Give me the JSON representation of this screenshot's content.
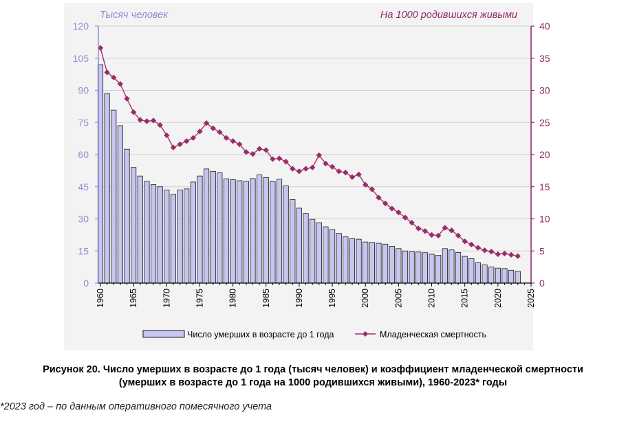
{
  "chart_data": {
    "type": "bar+line",
    "left_axis_title": "Тысяч человек",
    "right_axis_title": "На 1000 родившихся живыми",
    "left_ylim": [
      0,
      120
    ],
    "left_ticks": [
      "0",
      "15",
      "30",
      "45",
      "60",
      "75",
      "90",
      "105",
      "120"
    ],
    "right_ylim": [
      0,
      40
    ],
    "right_ticks": [
      "0",
      "5",
      "10",
      "15",
      "20",
      "25",
      "30",
      "35",
      "40"
    ],
    "xlim": [
      1960,
      2025
    ],
    "x_ticks": [
      "1960",
      "1965",
      "1970",
      "1975",
      "1980",
      "1985",
      "1990",
      "1995",
      "2000",
      "2005",
      "2010",
      "2015",
      "2020",
      "2025"
    ],
    "years": [
      1960,
      1961,
      1962,
      1963,
      1964,
      1965,
      1966,
      1967,
      1968,
      1969,
      1970,
      1971,
      1972,
      1973,
      1974,
      1975,
      1976,
      1977,
      1978,
      1979,
      1980,
      1981,
      1982,
      1983,
      1984,
      1985,
      1986,
      1987,
      1988,
      1989,
      1990,
      1991,
      1992,
      1993,
      1994,
      1995,
      1996,
      1997,
      1998,
      1999,
      2000,
      2001,
      2002,
      2003,
      2004,
      2005,
      2006,
      2007,
      2008,
      2009,
      2010,
      2011,
      2012,
      2013,
      2014,
      2015,
      2016,
      2017,
      2018,
      2019,
      2020,
      2021,
      2022,
      2023
    ],
    "grid": true,
    "legend_position": "bottom",
    "series": [
      {
        "name": "Число умерших в возрасте до 1 года",
        "kind": "bar",
        "axis": "left",
        "color": "#c6c6f0",
        "values": [
          102,
          88.5,
          80.8,
          73.5,
          62.5,
          54,
          50,
          47.5,
          46,
          45,
          43.5,
          41.5,
          43.5,
          44,
          47.2,
          50,
          53.3,
          52.2,
          51.5,
          48.7,
          48.3,
          47.8,
          47.5,
          48.8,
          50.5,
          49.3,
          47.4,
          48.5,
          45.4,
          39,
          35,
          32.5,
          29.8,
          28.2,
          26.3,
          25,
          23.2,
          21.6,
          20.7,
          20.5,
          19.2,
          19,
          18.6,
          18.2,
          17.2,
          16.1,
          15,
          14.7,
          14.5,
          14.2,
          13.5,
          13,
          16.1,
          15.5,
          14.3,
          12.5,
          11.4,
          9.5,
          8.5,
          7.5,
          7,
          6.8,
          6,
          5.5
        ]
      },
      {
        "name": "Младенческая смертность",
        "kind": "line",
        "axis": "right",
        "color": "#a0306e",
        "values": [
          36.6,
          32.8,
          32,
          31,
          28.7,
          26.6,
          25.4,
          25.2,
          25.3,
          24.6,
          23,
          21.1,
          21.6,
          22.1,
          22.6,
          23.6,
          24.9,
          24.1,
          23.5,
          22.6,
          22.1,
          21.6,
          20.4,
          20.1,
          20.9,
          20.7,
          19.3,
          19.4,
          18.9,
          17.8,
          17.4,
          17.8,
          18,
          19.9,
          18.6,
          18.1,
          17.4,
          17.2,
          16.5,
          16.9,
          15.3,
          14.6,
          13.3,
          12.4,
          11.6,
          11,
          10.2,
          9.4,
          8.5,
          8.1,
          7.5,
          7.4,
          8.6,
          8.2,
          7.4,
          6.5,
          6,
          5.5,
          5.1,
          4.9,
          4.5,
          4.6,
          4.4,
          4.2
        ]
      }
    ]
  },
  "caption": {
    "line1": "Рисунок 20. Число умерших в возрасте до 1 года (тысяч человек) и коэффициент младенческой смертности",
    "line2": "(умерших в возрасте до 1 года на 1000 родившихся живыми), 1960-2023* годы"
  },
  "footnote": "*2023 год – по данным оперативного помесячного учета",
  "colors": {
    "left_axis": "#8d8dd8",
    "right_axis": "#93276a",
    "bar_fill": "#c6c6f0",
    "bar_stroke": "#1a1a1a",
    "line": "#a0306e",
    "marker": "#9c2c69",
    "grid": "#d2d2d2"
  }
}
